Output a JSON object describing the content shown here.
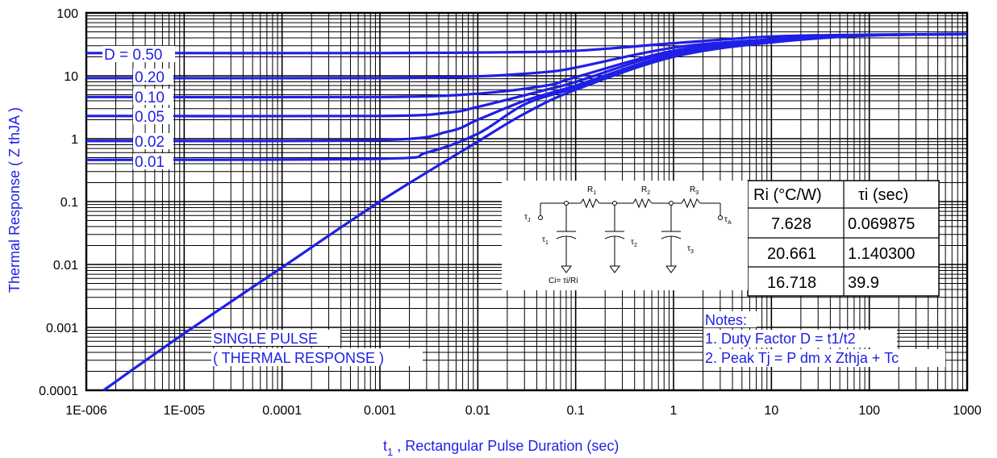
{
  "chart_data": {
    "type": "line",
    "xscale": "log",
    "yscale": "log",
    "xlim": [
      1e-06,
      1000
    ],
    "ylim": [
      0.0001,
      100
    ],
    "grid": true,
    "xlabel": "t1 , Rectangular Pulse Duration (sec)",
    "xlabel_main": "t",
    "xlabel_sub": "1",
    "xlabel_rest": " , Rectangular Pulse Duration (sec)",
    "ylabel": "Thermal Response ( Z thJA )",
    "x_tick_labels": [
      "1E-006",
      "1E-005",
      "0.0001",
      "0.001",
      "0.01",
      "0.1",
      "1",
      "10",
      "100",
      "1000"
    ],
    "y_tick_labels": [
      "0.0001",
      "0.001",
      "0.01",
      "0.1",
      "1",
      "10",
      "100"
    ],
    "series": [
      {
        "name": "D = 0.50",
        "x": [
          1e-06,
          0.001,
          0.01,
          0.1,
          1,
          10,
          100,
          1000
        ],
        "y": [
          23,
          23,
          23.5,
          25,
          33,
          42,
          45,
          46
        ]
      },
      {
        "name": "0.20",
        "x": [
          1e-06,
          0.001,
          0.01,
          0.05,
          0.1,
          1,
          10,
          100,
          1000
        ],
        "y": [
          9.2,
          9.2,
          9.8,
          11.5,
          13.5,
          28,
          38,
          44,
          46
        ]
      },
      {
        "name": "0.10",
        "x": [
          1e-06,
          0.001,
          0.01,
          0.05,
          0.1,
          1,
          10,
          100,
          1000
        ],
        "y": [
          4.6,
          4.6,
          5.2,
          7,
          9.5,
          25,
          37,
          44,
          46
        ]
      },
      {
        "name": "0.05",
        "x": [
          1e-06,
          0.001,
          0.005,
          0.01,
          0.05,
          0.1,
          1,
          10,
          100,
          1000
        ],
        "y": [
          2.3,
          2.3,
          2.6,
          3.2,
          6,
          8,
          24,
          36,
          44,
          46
        ]
      },
      {
        "name": "0.02",
        "x": [
          1e-06,
          0.001,
          0.005,
          0.01,
          0.03,
          0.1,
          1,
          10,
          100,
          1000
        ],
        "y": [
          0.92,
          0.95,
          1.3,
          2,
          4,
          7,
          22,
          35,
          44,
          46
        ]
      },
      {
        "name": "0.01",
        "x": [
          1e-06,
          0.001,
          0.003,
          0.01,
          0.03,
          0.1,
          1,
          10,
          100,
          1000
        ],
        "y": [
          0.46,
          0.48,
          0.6,
          1.2,
          3.5,
          6.5,
          21,
          34,
          44,
          46
        ]
      },
      {
        "name": "SINGLE PULSE ( THERMAL RESPONSE )",
        "x": [
          1.5e-06,
          1e-05,
          0.0001,
          0.001,
          0.01,
          0.03,
          0.1,
          1,
          10,
          100,
          1000
        ],
        "y": [
          0.0001,
          0.0008,
          0.009,
          0.1,
          0.9,
          2.5,
          6,
          20,
          34,
          44,
          46
        ]
      }
    ],
    "curve_labels": [
      "D = 0.50",
      "0.20",
      "0.10",
      "0.05",
      "0.02",
      "0.01"
    ],
    "annotations": {
      "single_pulse_line1": "SINGLE PULSE",
      "single_pulse_line2": "( THERMAL RESPONSE )",
      "notes_title": "Notes:",
      "note1": "1. Duty Factor D = t1/t2",
      "note2": "2. Peak Tj = P dm x Zthja + Tc"
    },
    "rc_table": {
      "headers": [
        "Ri (°C/W)",
        "τi (sec)"
      ],
      "rows": [
        [
          "7.628",
          "0.069875"
        ],
        [
          "20.661",
          "1.140300"
        ],
        [
          "16.718",
          "39.9"
        ]
      ]
    },
    "circuit": {
      "R1": "R",
      "R1_sub": "1",
      "R2": "R",
      "R2_sub": "2",
      "R3": "R",
      "R3_sub": "3",
      "tauJ": "τ",
      "tauJ_sub": "J",
      "tauA": "τ",
      "tauA_sub": "A",
      "tau1": "τ",
      "tau1_sub": "1",
      "tau2": "τ",
      "tau2_sub": "2",
      "tau3": "τ",
      "tau3_sub": "3",
      "ci_formula": "Ci= τi/Ri"
    },
    "colors": {
      "curve": "#1f1fe6",
      "text_blue": "#1f1fe6",
      "grid": "#000000"
    }
  }
}
